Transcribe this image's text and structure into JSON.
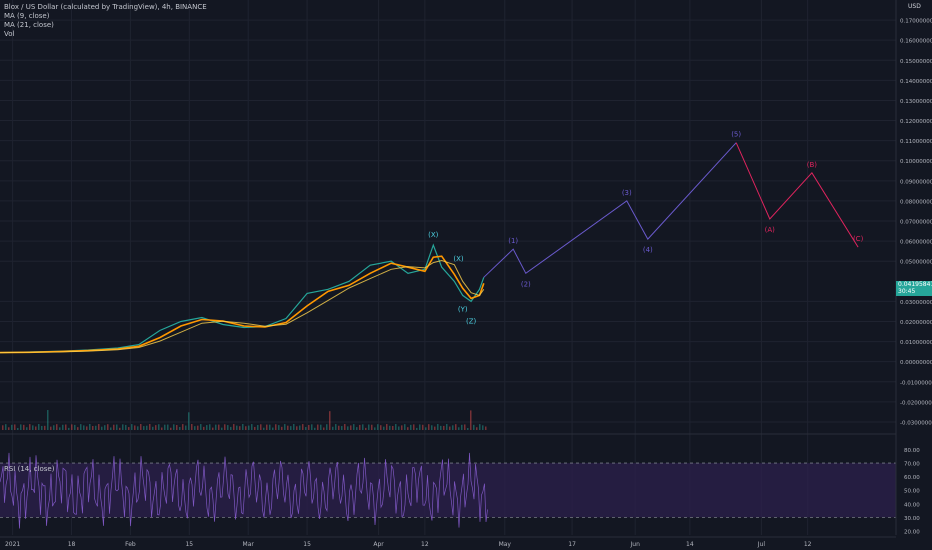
{
  "legend": {
    "title": "Blox / US Dollar (calculated by TradingView), 4h, BINANCE",
    "ma1": "MA (9, close)",
    "ma2": "MA (21, close)",
    "vol": "Vol"
  },
  "rsi_legend": "RSI (14, close)",
  "price_tag": {
    "value": "0.04195841",
    "countdown": "30:45"
  },
  "currency": "USD",
  "colors": {
    "background": "#131722",
    "grid": "#1f2330",
    "candle_up": "#26a69a",
    "ma9": "#ff9800",
    "ma21": "#ffd54f",
    "wave_impulse": "#4a3ea8",
    "wave_corrective": "#e0245e",
    "wxyz_labels": "#4dd0e1",
    "rsi_line": "#7e57c2",
    "rsi_band": "#2a1f4a"
  },
  "chart_data": {
    "type": "line",
    "title": "Blox / US Dollar (calculated by TradingView), 4h, BINANCE",
    "y_axis": {
      "ticks": [
        "0.17000000",
        "0.16000000",
        "0.15000000",
        "0.14000000",
        "0.13000000",
        "0.12000000",
        "0.11000000",
        "0.10000000",
        "0.09000000",
        "0.08000000",
        "0.07000000",
        "0.06000000",
        "0.05000000",
        "0.03000000",
        "0.02000000",
        "0.01000000",
        "0.00000000",
        "-0.01000000",
        "-0.02000000",
        "-0.03000000"
      ],
      "range": [
        -0.034,
        0.18
      ]
    },
    "x_axis": {
      "ticks": [
        "2021",
        "18",
        "Feb",
        "15",
        "Mar",
        "15",
        "Apr",
        "12",
        "May",
        "17",
        "Jun",
        "14",
        "Jul",
        "12"
      ]
    },
    "price_series": [
      {
        "date": "2021-01-01",
        "close": 0.0045
      },
      {
        "date": "2021-01-08",
        "close": 0.0048
      },
      {
        "date": "2021-01-15",
        "close": 0.0052
      },
      {
        "date": "2021-01-22",
        "close": 0.0058
      },
      {
        "date": "2021-01-29",
        "close": 0.0068
      },
      {
        "date": "2021-02-03",
        "close": 0.0085
      },
      {
        "date": "2021-02-08",
        "close": 0.0155
      },
      {
        "date": "2021-02-13",
        "close": 0.02
      },
      {
        "date": "2021-02-18",
        "close": 0.022
      },
      {
        "date": "2021-02-23",
        "close": 0.0185
      },
      {
        "date": "2021-02-28",
        "close": 0.017
      },
      {
        "date": "2021-03-05",
        "close": 0.0175
      },
      {
        "date": "2021-03-10",
        "close": 0.0215
      },
      {
        "date": "2021-03-15",
        "close": 0.034
      },
      {
        "date": "2021-03-20",
        "close": 0.036
      },
      {
        "date": "2021-03-25",
        "close": 0.04
      },
      {
        "date": "2021-03-30",
        "close": 0.048
      },
      {
        "date": "2021-04-04",
        "close": 0.05
      },
      {
        "date": "2021-04-08",
        "close": 0.044
      },
      {
        "date": "2021-04-12",
        "close": 0.046
      },
      {
        "date": "2021-04-14",
        "close": 0.058
      },
      {
        "date": "2021-04-16",
        "close": 0.047
      },
      {
        "date": "2021-04-19",
        "close": 0.04
      },
      {
        "date": "2021-04-21",
        "close": 0.033
      },
      {
        "date": "2021-04-23",
        "close": 0.03
      },
      {
        "date": "2021-04-25",
        "close": 0.036
      },
      {
        "date": "2021-04-26",
        "close": 0.042
      }
    ],
    "projection_impulse": [
      {
        "label": "",
        "date": "2021-04-26",
        "price": 0.042
      },
      {
        "label": "(1)",
        "date": "2021-05-03",
        "price": 0.056
      },
      {
        "label": "(2)",
        "date": "2021-05-06",
        "price": 0.044
      },
      {
        "label": "(3)",
        "date": "2021-05-30",
        "price": 0.08
      },
      {
        "label": "(4)",
        "date": "2021-06-04",
        "price": 0.061
      },
      {
        "label": "(5)",
        "date": "2021-06-25",
        "price": 0.109
      }
    ],
    "projection_corrective": [
      {
        "label": "",
        "date": "2021-06-25",
        "price": 0.109
      },
      {
        "label": "(A)",
        "date": "2021-07-03",
        "price": 0.071
      },
      {
        "label": "(B)",
        "date": "2021-07-13",
        "price": 0.094
      },
      {
        "label": "(C)",
        "date": "2021-07-24",
        "price": 0.057
      }
    ],
    "wxyz_labels": [
      "(X)",
      "(X)",
      "(Y)",
      "(Z)"
    ],
    "rsi": {
      "ticks": [
        "80.00",
        "70.00",
        "60.00",
        "50.00",
        "40.00",
        "30.00",
        "20.00"
      ],
      "range": [
        17,
        87
      ],
      "upper": 70,
      "lower": 30
    }
  }
}
